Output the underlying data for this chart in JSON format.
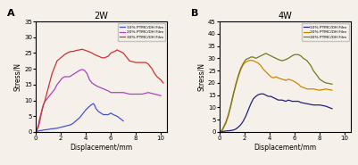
{
  "title_A": "2W",
  "title_B": "4W",
  "label_A": "A",
  "label_B": "B",
  "xlabel": "Displacement/mm",
  "ylabel": "Stress/N",
  "xlim": [
    0,
    10.5
  ],
  "ylim_A": [
    0,
    35
  ],
  "ylim_B": [
    0,
    45
  ],
  "yticks_A": [
    0,
    5,
    10,
    15,
    20,
    25,
    30,
    35
  ],
  "yticks_B": [
    0,
    5,
    10,
    15,
    20,
    25,
    30,
    35,
    40,
    45
  ],
  "xticks": [
    0,
    2,
    4,
    6,
    8,
    10
  ],
  "legend_labels": [
    "10% PTMC/DH Film",
    "20% PTMC/DH Film",
    "30% PTMC/DH Film"
  ],
  "colors_A": [
    "#4455cc",
    "#aa44bb",
    "#cc3333"
  ],
  "colors_B": [
    "#222277",
    "#cc8800",
    "#777722"
  ],
  "bg_color": "#f5f0ea",
  "A_10_x": [
    0,
    0.05,
    0.1,
    0.2,
    0.3,
    0.4,
    0.5,
    0.6,
    0.7,
    0.8,
    0.9,
    1.0,
    1.1,
    1.2,
    1.3,
    1.5,
    1.7,
    1.9,
    2.1,
    2.3,
    2.5,
    2.8,
    3.0,
    3.2,
    3.5,
    3.7,
    4.0,
    4.2,
    4.4,
    4.6,
    4.7,
    4.8,
    5.0,
    5.2,
    5.4,
    5.6,
    5.8,
    6.0,
    6.2,
    6.5,
    7.0
  ],
  "A_10_y": [
    0,
    0.1,
    0.2,
    0.3,
    0.4,
    0.5,
    0.5,
    0.6,
    0.7,
    0.7,
    0.8,
    0.8,
    0.9,
    1.0,
    1.0,
    1.1,
    1.2,
    1.4,
    1.6,
    1.8,
    2.0,
    2.3,
    2.8,
    3.5,
    4.5,
    5.5,
    7.0,
    7.8,
    8.5,
    9.0,
    8.5,
    7.5,
    6.5,
    6.0,
    5.5,
    5.5,
    5.5,
    6.0,
    5.5,
    5.0,
    3.5
  ],
  "A_20_x": [
    0,
    0.05,
    0.1,
    0.2,
    0.3,
    0.4,
    0.5,
    0.6,
    0.7,
    0.8,
    0.9,
    1.0,
    1.1,
    1.2,
    1.3,
    1.4,
    1.5,
    1.7,
    1.9,
    2.1,
    2.3,
    2.5,
    2.7,
    2.9,
    3.1,
    3.3,
    3.5,
    3.7,
    3.9,
    4.1,
    4.2,
    4.3,
    4.5,
    4.7,
    4.9,
    5.2,
    5.5,
    5.8,
    6.0,
    6.5,
    7.0,
    7.5,
    8.0,
    8.5,
    9.0,
    9.5,
    10.0
  ],
  "A_20_y": [
    0,
    0.3,
    0.7,
    1.5,
    3.0,
    5.0,
    7.0,
    8.5,
    9.5,
    10.0,
    10.5,
    11.0,
    11.5,
    12.0,
    12.5,
    13.0,
    13.5,
    15.0,
    16.0,
    17.0,
    17.5,
    17.5,
    17.5,
    18.0,
    18.5,
    19.0,
    19.5,
    19.8,
    19.5,
    18.5,
    17.5,
    16.5,
    15.5,
    15.0,
    14.5,
    14.0,
    13.5,
    13.0,
    12.5,
    12.5,
    12.5,
    12.0,
    12.0,
    12.0,
    12.5,
    12.0,
    11.5
  ],
  "A_30_x": [
    0,
    0.05,
    0.1,
    0.2,
    0.3,
    0.4,
    0.5,
    0.6,
    0.7,
    0.8,
    0.9,
    1.0,
    1.1,
    1.2,
    1.3,
    1.5,
    1.7,
    2.0,
    2.3,
    2.5,
    2.8,
    3.0,
    3.2,
    3.5,
    3.7,
    4.0,
    4.2,
    4.5,
    4.7,
    5.0,
    5.3,
    5.5,
    5.8,
    6.0,
    6.3,
    6.5,
    7.0,
    7.5,
    8.0,
    8.5,
    8.8,
    9.0,
    9.3,
    9.5,
    9.7,
    10.0,
    10.2
  ],
  "A_30_y": [
    0,
    0.3,
    0.8,
    2.0,
    4.0,
    5.5,
    7.0,
    8.5,
    9.5,
    11.0,
    12.5,
    14.0,
    15.5,
    17.0,
    18.5,
    20.5,
    22.5,
    23.5,
    24.5,
    25.0,
    25.5,
    25.5,
    25.8,
    26.0,
    26.2,
    25.8,
    25.5,
    25.0,
    24.5,
    24.0,
    23.5,
    23.5,
    24.0,
    25.0,
    25.5,
    26.0,
    25.0,
    22.5,
    22.0,
    22.0,
    22.0,
    21.5,
    20.0,
    18.5,
    17.5,
    16.5,
    15.5
  ],
  "B_10_x": [
    0,
    0.1,
    0.2,
    0.3,
    0.5,
    0.7,
    0.9,
    1.1,
    1.3,
    1.5,
    1.7,
    1.9,
    2.1,
    2.3,
    2.5,
    2.7,
    2.9,
    3.1,
    3.3,
    3.5,
    3.7,
    3.9,
    4.1,
    4.3,
    4.5,
    4.7,
    5.0,
    5.3,
    5.5,
    5.8,
    6.0,
    6.3,
    6.5,
    7.0,
    7.5,
    8.0,
    8.5,
    9.0
  ],
  "B_10_y": [
    0,
    0.1,
    0.2,
    0.3,
    0.4,
    0.5,
    0.6,
    0.8,
    1.2,
    2.0,
    3.0,
    4.5,
    6.5,
    9.0,
    11.5,
    13.5,
    14.5,
    15.2,
    15.5,
    15.5,
    15.0,
    14.5,
    14.5,
    14.0,
    13.5,
    13.0,
    13.0,
    12.5,
    13.0,
    12.5,
    12.5,
    12.5,
    12.0,
    11.5,
    11.0,
    11.0,
    10.5,
    9.5
  ],
  "B_20_x": [
    0,
    0.1,
    0.2,
    0.3,
    0.5,
    0.7,
    0.9,
    1.1,
    1.3,
    1.5,
    1.7,
    1.9,
    2.1,
    2.3,
    2.5,
    2.7,
    2.9,
    3.1,
    3.3,
    3.5,
    3.7,
    3.9,
    4.1,
    4.3,
    4.5,
    4.7,
    5.0,
    5.3,
    5.5,
    5.8,
    6.0,
    6.3,
    6.5,
    7.0,
    7.5,
    8.0,
    8.5,
    9.0
  ],
  "B_20_y": [
    0,
    0.3,
    0.7,
    1.5,
    3.5,
    6.5,
    10.5,
    15.0,
    19.0,
    22.5,
    25.5,
    27.5,
    28.5,
    29.0,
    29.2,
    29.0,
    28.5,
    28.0,
    27.0,
    25.5,
    24.5,
    23.5,
    22.5,
    22.0,
    22.5,
    22.0,
    21.5,
    21.0,
    21.5,
    21.0,
    20.5,
    19.5,
    18.5,
    17.5,
    17.5,
    17.0,
    17.5,
    17.0
  ],
  "B_30_x": [
    0,
    0.1,
    0.2,
    0.3,
    0.5,
    0.7,
    0.9,
    1.1,
    1.3,
    1.5,
    1.7,
    1.9,
    2.1,
    2.3,
    2.5,
    2.7,
    2.9,
    3.1,
    3.3,
    3.5,
    3.7,
    3.9,
    4.1,
    4.3,
    4.5,
    4.7,
    5.0,
    5.3,
    5.5,
    5.8,
    6.0,
    6.3,
    6.5,
    6.7,
    7.0,
    7.3,
    7.5,
    7.8,
    8.0,
    8.3,
    8.5,
    9.0
  ],
  "B_30_y": [
    0,
    0.3,
    0.8,
    1.8,
    4.0,
    7.0,
    11.0,
    15.5,
    19.5,
    23.0,
    26.0,
    28.0,
    29.5,
    30.0,
    30.5,
    30.5,
    30.0,
    30.5,
    31.0,
    31.5,
    32.0,
    31.5,
    31.0,
    30.5,
    30.0,
    29.5,
    29.0,
    29.5,
    30.0,
    31.0,
    31.5,
    31.5,
    31.0,
    30.0,
    29.0,
    27.0,
    25.0,
    23.0,
    21.5,
    20.5,
    20.0,
    19.5
  ]
}
